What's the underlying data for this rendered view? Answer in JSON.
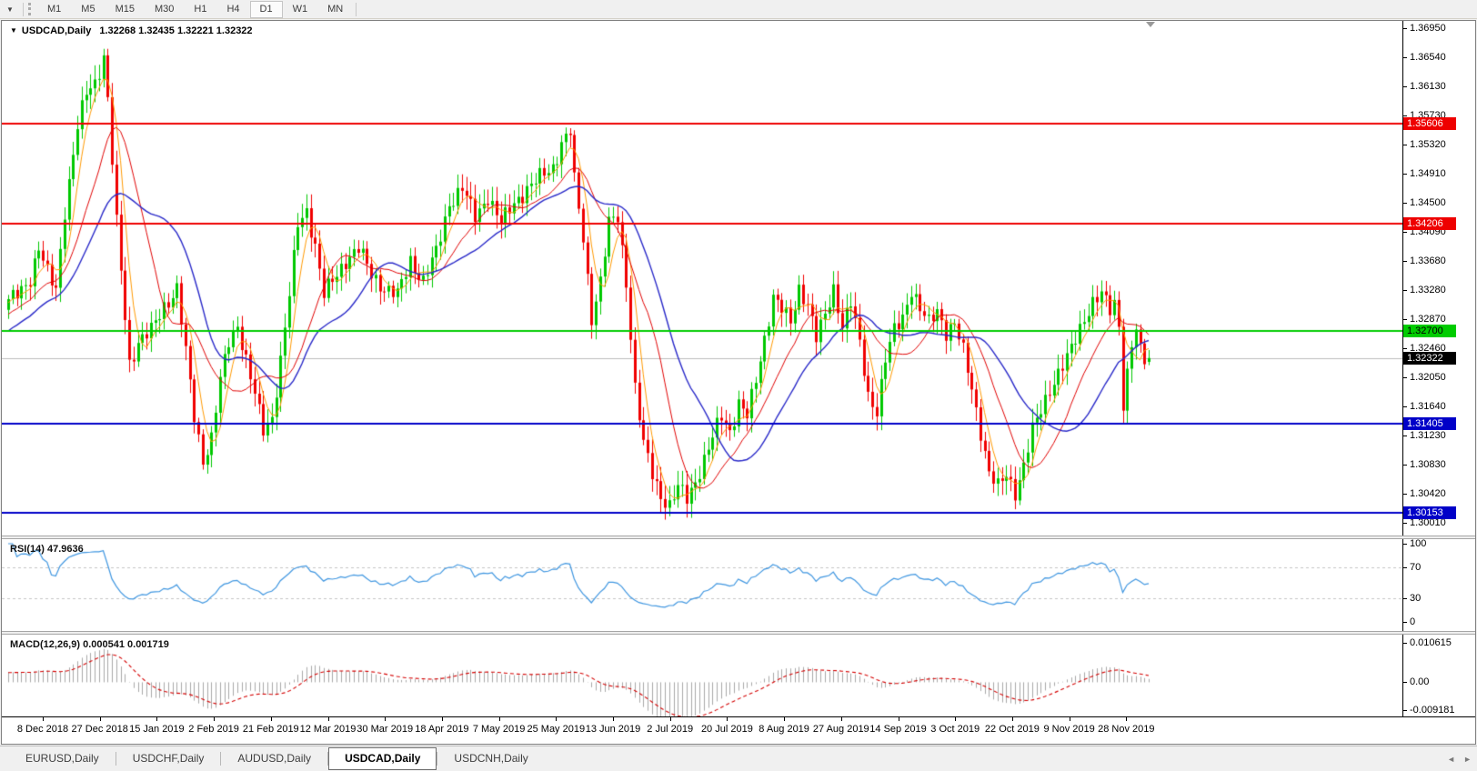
{
  "toolbar": {
    "dropdown_icon": "▼",
    "timeframes": [
      "M1",
      "M5",
      "M15",
      "M30",
      "H1",
      "H4",
      "D1",
      "W1",
      "MN"
    ],
    "active_timeframe": "D1"
  },
  "chart": {
    "title": {
      "dropdown_icon": "▼",
      "symbol": "USDCAD,Daily",
      "ohlc": "1.32268 1.32435 1.32221 1.32322"
    }
  },
  "chart_data": {
    "type": "candlestick",
    "symbol": "USDCAD",
    "period": "Daily",
    "current_bar": {
      "open": 1.32268,
      "high": 1.32435,
      "low": 1.32221,
      "close": 1.32322
    },
    "bars_total": 265,
    "price_axis_ticks": [
      "1.36950",
      "1.36540",
      "1.36130",
      "1.35730",
      "1.35320",
      "1.34910",
      "1.34500",
      "1.34090",
      "1.33680",
      "1.33280",
      "1.32870",
      "1.32460",
      "1.32050",
      "1.31640",
      "1.31230",
      "1.30830",
      "1.30420",
      "1.30010"
    ],
    "x_labels": [
      "8 Dec 2018",
      "27 Dec 2018",
      "15 Jan 2019",
      "2 Feb 2019",
      "21 Feb 2019",
      "12 Mar 2019",
      "30 Mar 2019",
      "18 Apr 2019",
      "7 May 2019",
      "25 May 2019",
      "13 Jun 2019",
      "2 Jul 2019",
      "20 Jul 2019",
      "8 Aug 2019",
      "27 Aug 2019",
      "14 Sep 2019",
      "3 Oct 2019",
      "22 Oct 2019",
      "9 Nov 2019",
      "28 Nov 2019"
    ],
    "close_waypoints": [
      [
        0,
        1.331
      ],
      [
        3,
        1.333
      ],
      [
        5,
        1.3345
      ],
      [
        7,
        1.3385
      ],
      [
        9,
        1.335
      ],
      [
        11,
        1.333
      ],
      [
        13,
        1.344
      ],
      [
        16,
        1.3555
      ],
      [
        18,
        1.3605
      ],
      [
        20,
        1.362
      ],
      [
        22,
        1.3655
      ],
      [
        23,
        1.3595
      ],
      [
        25,
        1.342
      ],
      [
        28,
        1.3225
      ],
      [
        30,
        1.3255
      ],
      [
        33,
        1.327
      ],
      [
        36,
        1.3305
      ],
      [
        39,
        1.333
      ],
      [
        41,
        1.324
      ],
      [
        43,
        1.315
      ],
      [
        45,
        1.309
      ],
      [
        47,
        1.312
      ],
      [
        49,
        1.32
      ],
      [
        51,
        1.3255
      ],
      [
        53,
        1.328
      ],
      [
        55,
        1.323
      ],
      [
        57,
        1.318
      ],
      [
        59,
        1.313
      ],
      [
        61,
        1.315
      ],
      [
        63,
        1.323
      ],
      [
        65,
        1.332
      ],
      [
        67,
        1.342
      ],
      [
        69,
        1.344
      ],
      [
        71,
        1.339
      ],
      [
        73,
        1.332
      ],
      [
        75,
        1.334
      ],
      [
        78,
        1.337
      ],
      [
        81,
        1.3385
      ],
      [
        84,
        1.335
      ],
      [
        87,
        1.333
      ],
      [
        90,
        1.332
      ],
      [
        93,
        1.337
      ],
      [
        96,
        1.334
      ],
      [
        99,
        1.338
      ],
      [
        102,
        1.345
      ],
      [
        105,
        1.347
      ],
      [
        108,
        1.343
      ],
      [
        111,
        1.346
      ],
      [
        114,
        1.342
      ],
      [
        117,
        1.345
      ],
      [
        120,
        1.347
      ],
      [
        123,
        1.3485
      ],
      [
        126,
        1.35
      ],
      [
        128,
        1.3535
      ],
      [
        130,
        1.355
      ],
      [
        131,
        1.348
      ],
      [
        133,
        1.34
      ],
      [
        135,
        1.329
      ],
      [
        137,
        1.334
      ],
      [
        139,
        1.342
      ],
      [
        141,
        1.343
      ],
      [
        143,
        1.334
      ],
      [
        145,
        1.319
      ],
      [
        147,
        1.311
      ],
      [
        149,
        1.307
      ],
      [
        151,
        1.304
      ],
      [
        153,
        1.3025
      ],
      [
        155,
        1.305
      ],
      [
        157,
        1.3035
      ],
      [
        159,
        1.306
      ],
      [
        161,
        1.309
      ],
      [
        163,
        1.312
      ],
      [
        165,
        1.315
      ],
      [
        167,
        1.313
      ],
      [
        169,
        1.317
      ],
      [
        171,
        1.315
      ],
      [
        173,
        1.32
      ],
      [
        175,
        1.326
      ],
      [
        177,
        1.332
      ],
      [
        179,
        1.33
      ],
      [
        181,
        1.328
      ],
      [
        183,
        1.333
      ],
      [
        185,
        1.331
      ],
      [
        187,
        1.326
      ],
      [
        189,
        1.329
      ],
      [
        191,
        1.333
      ],
      [
        193,
        1.328
      ],
      [
        195,
        1.331
      ],
      [
        197,
        1.325
      ],
      [
        199,
        1.318
      ],
      [
        201,
        1.316
      ],
      [
        203,
        1.323
      ],
      [
        205,
        1.327
      ],
      [
        207,
        1.329
      ],
      [
        209,
        1.333
      ],
      [
        211,
        1.33
      ],
      [
        213,
        1.328
      ],
      [
        215,
        1.33
      ],
      [
        217,
        1.327
      ],
      [
        219,
        1.328
      ],
      [
        221,
        1.324
      ],
      [
        223,
        1.319
      ],
      [
        225,
        1.313
      ],
      [
        227,
        1.307
      ],
      [
        229,
        1.305
      ],
      [
        231,
        1.307
      ],
      [
        233,
        1.3045
      ],
      [
        235,
        1.308
      ],
      [
        237,
        1.313
      ],
      [
        239,
        1.316
      ],
      [
        241,
        1.319
      ],
      [
        243,
        1.321
      ],
      [
        245,
        1.323
      ],
      [
        247,
        1.326
      ],
      [
        249,
        1.329
      ],
      [
        251,
        1.331
      ],
      [
        253,
        1.332
      ],
      [
        255,
        1.33
      ],
      [
        256,
        1.331
      ],
      [
        257,
        1.328
      ],
      [
        258,
        1.317
      ],
      [
        259,
        1.321
      ],
      [
        260,
        1.325
      ],
      [
        261,
        1.327
      ],
      [
        262,
        1.324
      ],
      [
        263,
        1.323
      ],
      [
        264,
        1.32322
      ]
    ],
    "levels": [
      {
        "value": 1.35606,
        "label": "1.35606",
        "type": "resistance",
        "color": "#EE0000",
        "thickness": 2,
        "badge_bg": "#EE0000",
        "badge_text": "#FFFFFF"
      },
      {
        "value": 1.34206,
        "label": "1.34206",
        "type": "resistance",
        "color": "#EE0000",
        "thickness": 2,
        "badge_bg": "#EE0000",
        "badge_text": "#FFFFFF"
      },
      {
        "value": 1.327,
        "label": "1.32700",
        "type": "pivot",
        "color": "#00CC00",
        "thickness": 2,
        "badge_bg": "#00CC00",
        "badge_text": "#000000"
      },
      {
        "value": 1.32322,
        "label": "1.32322",
        "type": "bid",
        "color": "#BDBDBD",
        "thickness": 1,
        "badge_bg": "#000000",
        "badge_text": "#FFFFFF"
      },
      {
        "value": 1.31405,
        "label": "1.31405",
        "type": "support",
        "color": "#0000C8",
        "thickness": 2,
        "badge_bg": "#0000C8",
        "badge_text": "#FFFFFF"
      },
      {
        "value": 1.30153,
        "label": "1.30153",
        "type": "support",
        "color": "#0000C8",
        "thickness": 2,
        "badge_bg": "#0000C8",
        "badge_text": "#FFFFFF"
      }
    ],
    "moving_averages": [
      {
        "period": 5,
        "color": "#FF9900",
        "width": 1
      },
      {
        "period": 13,
        "color": "#E00000",
        "width": 1
      },
      {
        "period": 24,
        "color": "#2828C8",
        "width": 1.4
      }
    ],
    "indicators": [
      {
        "name": "RSI",
        "label": "RSI(14) 47.9636",
        "value": 47.9636,
        "period": 14,
        "levels": [
          70,
          30
        ],
        "axis_ticks": [
          "100",
          "70",
          "30",
          "0"
        ],
        "line_color": "#3F96E0"
      },
      {
        "name": "MACD",
        "label": "MACD(12,26,9) 0.000541 0.001719",
        "values": [
          0.000541,
          0.001719
        ],
        "params": [
          12,
          26,
          9
        ],
        "axis_ticks": [
          "0.010615",
          "0.00",
          "-0.009181"
        ],
        "axis_max": 0.010615,
        "axis_min": -0.009181,
        "hist_color": "#A8A8A8",
        "signal_color": "#D40000"
      }
    ],
    "colors": {
      "up": "#00C800",
      "down": "#F00000"
    }
  },
  "tabbar": {
    "tabs": [
      "EURUSD,Daily",
      "USDCHF,Daily",
      "AUDUSD,Daily",
      "USDCAD,Daily",
      "USDCNH,Daily"
    ],
    "active_tab": "USDCAD,Daily",
    "scroll_left_icon": "◄",
    "scroll_right_icon": "►"
  }
}
